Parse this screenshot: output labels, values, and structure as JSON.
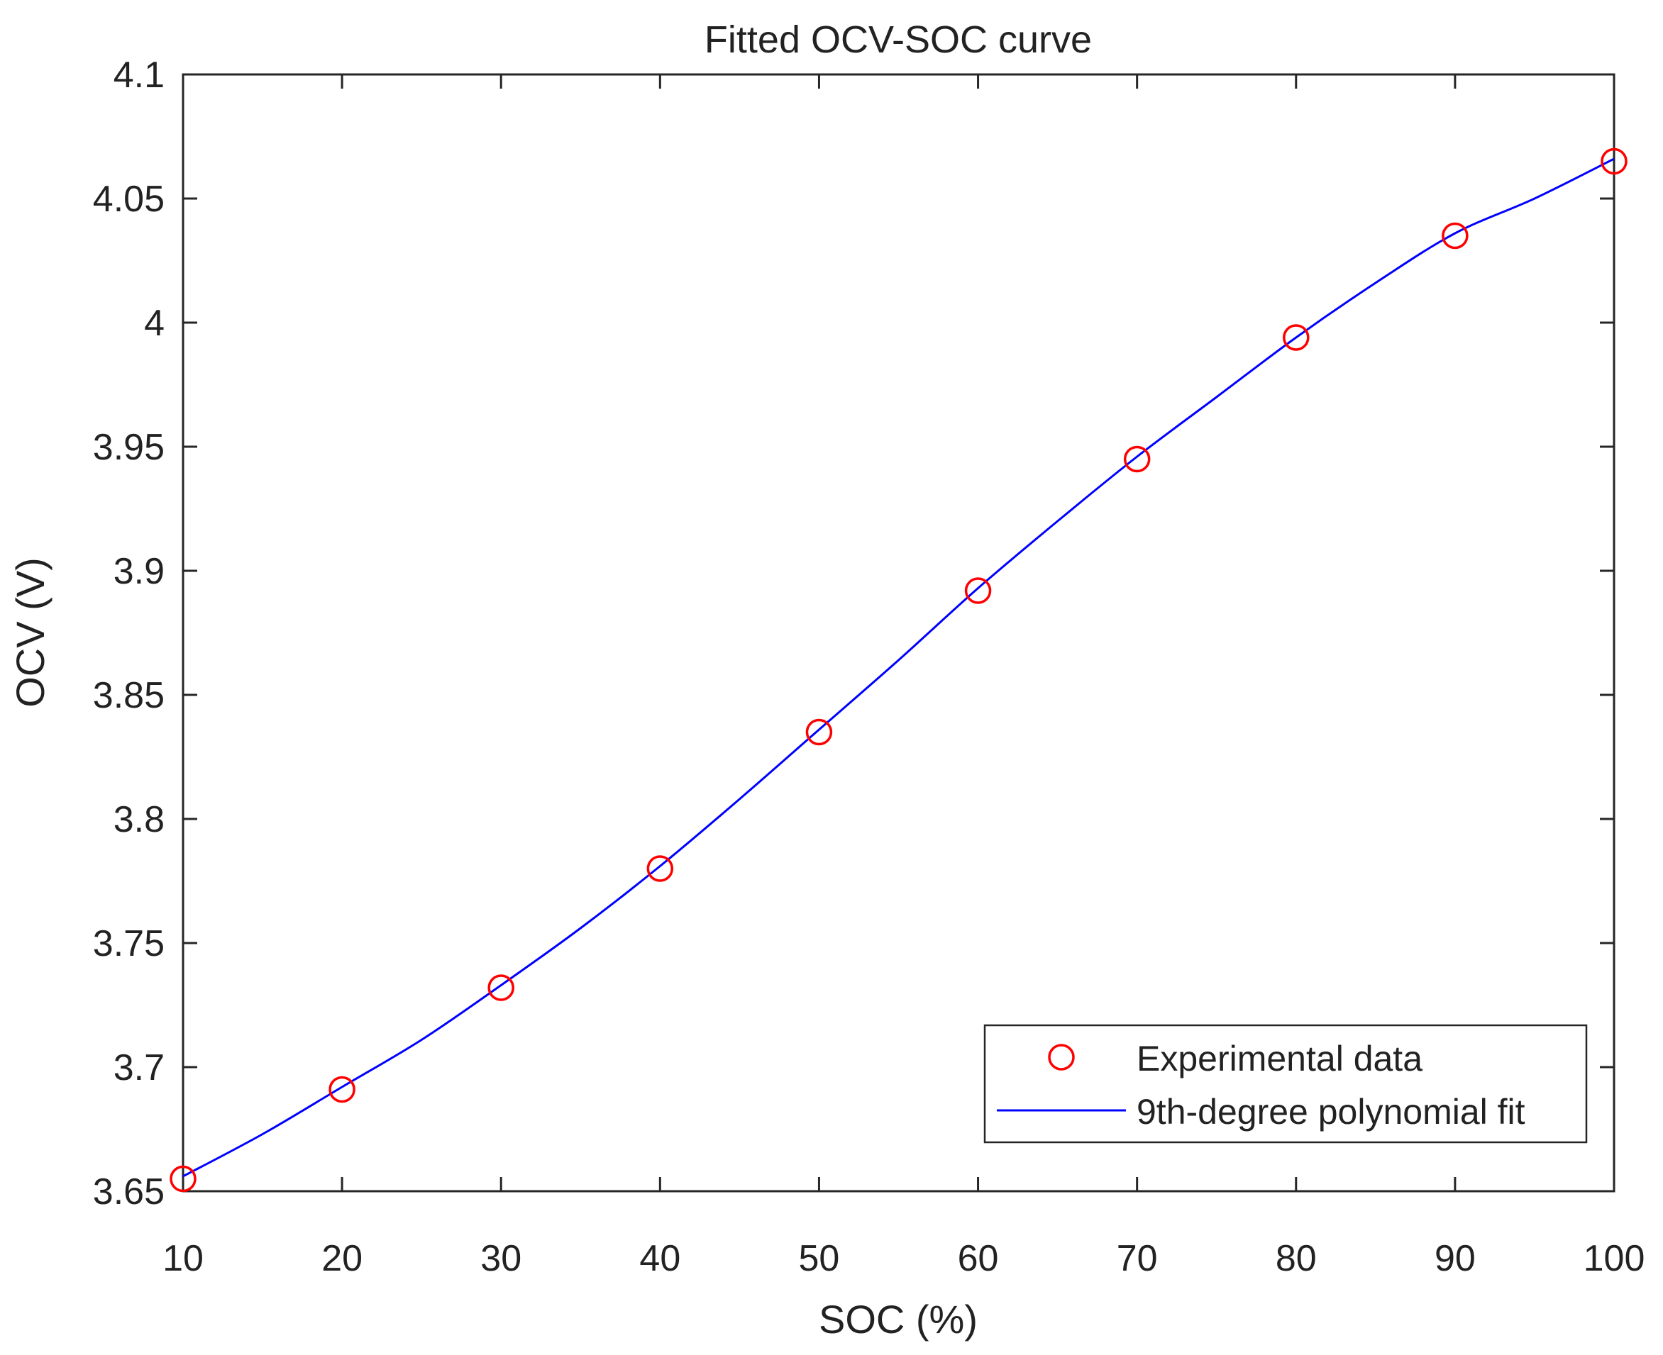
{
  "chart_data": {
    "type": "line",
    "title": "Fitted OCV-SOC curve",
    "xlabel": "SOC (%)",
    "ylabel": "OCV (V)",
    "xlim": [
      10,
      100
    ],
    "ylim": [
      3.65,
      4.1
    ],
    "xticks": [
      10,
      20,
      30,
      40,
      50,
      60,
      70,
      80,
      90,
      100
    ],
    "yticks": [
      3.65,
      3.7,
      3.75,
      3.8,
      3.85,
      3.9,
      3.95,
      4,
      4.05,
      4.1
    ],
    "xtick_labels": [
      "10",
      "20",
      "30",
      "40",
      "50",
      "60",
      "70",
      "80",
      "90",
      "100"
    ],
    "ytick_labels": [
      "3.65",
      "3.7",
      "3.75",
      "3.8",
      "3.85",
      "3.9",
      "3.95",
      "4",
      "4.05",
      "4.1"
    ],
    "grid": false,
    "legend_position": "bottom-right",
    "series": [
      {
        "name": "Experimental data",
        "kind": "marker",
        "marker": "circle",
        "color": "#ff0000",
        "x": [
          10,
          20,
          30,
          40,
          50,
          60,
          70,
          80,
          90,
          100
        ],
        "y": [
          3.655,
          3.691,
          3.732,
          3.78,
          3.835,
          3.892,
          3.945,
          3.994,
          4.035,
          4.065
        ]
      },
      {
        "name": "9th-degree polynomial fit",
        "kind": "line",
        "color": "#0000ff",
        "x": [
          10,
          15,
          20,
          25,
          30,
          35,
          40,
          45,
          50,
          55,
          60,
          65,
          70,
          75,
          80,
          85,
          90,
          95,
          100
        ],
        "y": [
          3.656,
          3.673,
          3.692,
          3.711,
          3.733,
          3.756,
          3.781,
          3.808,
          3.836,
          3.864,
          3.893,
          3.92,
          3.946,
          3.97,
          3.994,
          4.016,
          4.036,
          4.05,
          4.066
        ]
      }
    ]
  }
}
